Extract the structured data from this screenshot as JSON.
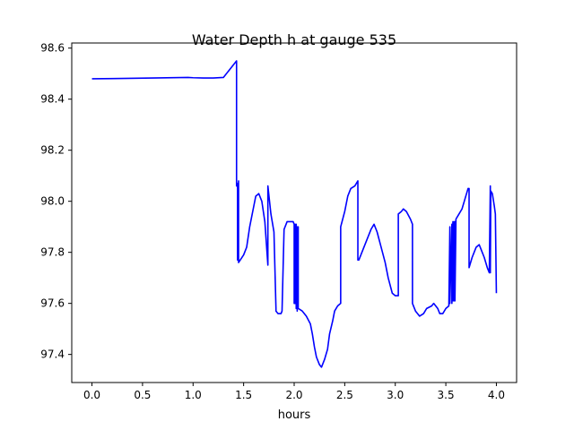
{
  "chart_data": {
    "type": "line",
    "title": "Water Depth h at gauge 535",
    "xlabel": "hours",
    "ylabel": "",
    "xlim": [
      -0.2,
      4.2
    ],
    "ylim": [
      97.29,
      98.62
    ],
    "xticks": [
      0.0,
      0.5,
      1.0,
      1.5,
      2.0,
      2.5,
      3.0,
      3.5,
      4.0
    ],
    "xtick_labels": [
      "0.0",
      "0.5",
      "1.0",
      "1.5",
      "2.0",
      "2.5",
      "3.0",
      "3.5",
      "4.0"
    ],
    "yticks": [
      97.4,
      97.6,
      97.8,
      98.0,
      98.2,
      98.4,
      98.6
    ],
    "ytick_labels": [
      "97.4",
      "97.6",
      "97.8",
      "98.0",
      "98.2",
      "98.4",
      "98.6"
    ],
    "grid": false,
    "series": [
      {
        "color": "#0000ff",
        "x": [
          0.0,
          0.3,
          0.6,
          0.95,
          1.0,
          1.1,
          1.2,
          1.3,
          1.35,
          1.4,
          1.43,
          1.43,
          1.44,
          1.44,
          1.45,
          1.45,
          1.5,
          1.53,
          1.56,
          1.6,
          1.62,
          1.65,
          1.68,
          1.71,
          1.74,
          1.74,
          1.77,
          1.8,
          1.82,
          1.82,
          1.84,
          1.87,
          1.88,
          1.9,
          1.91,
          1.93,
          1.95,
          1.99,
          2.0,
          2.0,
          2.01,
          2.01,
          2.02,
          2.02,
          2.03,
          2.03,
          2.04,
          2.04,
          2.08,
          2.12,
          2.16,
          2.18,
          2.2,
          2.22,
          2.25,
          2.27,
          2.3,
          2.33,
          2.35,
          2.38,
          2.4,
          2.43,
          2.46,
          2.46,
          2.5,
          2.53,
          2.56,
          2.6,
          2.63,
          2.63,
          2.64,
          2.68,
          2.72,
          2.76,
          2.79,
          2.82,
          2.86,
          2.9,
          2.93,
          2.97,
          3.0,
          3.03,
          3.03,
          3.06,
          3.08,
          3.11,
          3.15,
          3.17,
          3.17,
          3.2,
          3.24,
          3.28,
          3.31,
          3.36,
          3.38,
          3.42,
          3.44,
          3.47,
          3.5,
          3.53,
          3.53,
          3.54,
          3.54,
          3.56,
          3.56,
          3.57,
          3.57,
          3.58,
          3.58,
          3.59,
          3.59,
          3.6,
          3.6,
          3.63,
          3.66,
          3.69,
          3.72,
          3.73,
          3.73,
          3.76,
          3.78,
          3.8,
          3.83,
          3.85,
          3.88,
          3.91,
          3.93,
          3.94,
          3.94,
          3.945,
          3.96,
          3.98,
          3.99,
          4.0
        ],
        "y": [
          98.48,
          98.481,
          98.483,
          98.485,
          98.484,
          98.483,
          98.483,
          98.485,
          98.51,
          98.535,
          98.55,
          98.06,
          98.07,
          97.77,
          98.08,
          97.76,
          97.79,
          97.82,
          97.9,
          97.98,
          98.02,
          98.03,
          98.0,
          97.92,
          97.75,
          98.06,
          97.95,
          97.88,
          97.58,
          97.57,
          97.56,
          97.56,
          97.57,
          97.89,
          97.9,
          97.92,
          97.92,
          97.92,
          97.91,
          97.6,
          97.91,
          97.6,
          97.91,
          97.58,
          97.9,
          97.57,
          97.9,
          97.58,
          97.57,
          97.55,
          97.52,
          97.48,
          97.43,
          97.39,
          97.36,
          97.35,
          97.38,
          97.42,
          97.48,
          97.53,
          97.57,
          97.59,
          97.6,
          97.9,
          97.96,
          98.02,
          98.05,
          98.06,
          98.08,
          97.77,
          97.77,
          97.81,
          97.85,
          97.89,
          97.91,
          97.88,
          97.82,
          97.76,
          97.7,
          97.64,
          97.63,
          97.63,
          97.95,
          97.96,
          97.97,
          97.96,
          97.93,
          97.91,
          97.6,
          97.57,
          97.55,
          97.56,
          97.58,
          97.59,
          97.6,
          97.58,
          97.56,
          97.56,
          97.58,
          97.59,
          97.59,
          97.9,
          97.6,
          97.91,
          97.6,
          97.92,
          97.61,
          97.92,
          97.61,
          97.92,
          97.61,
          97.92,
          97.93,
          97.95,
          97.97,
          98.01,
          98.05,
          98.05,
          97.74,
          97.78,
          97.8,
          97.82,
          97.83,
          97.81,
          97.78,
          97.74,
          97.72,
          98.06,
          97.72,
          98.04,
          98.03,
          97.98,
          97.95,
          97.64
        ]
      }
    ]
  }
}
